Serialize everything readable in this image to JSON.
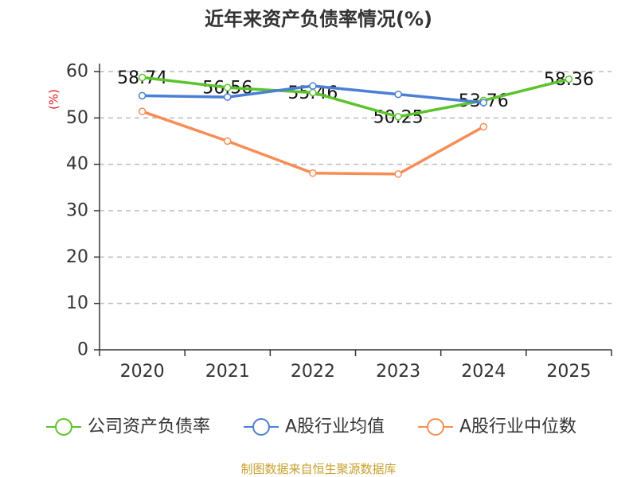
{
  "chart_data": {
    "type": "line",
    "title": "近年来资产负债率情况(%)",
    "ylabel": "(%)",
    "xlabel": "",
    "categories": [
      "2020",
      "2021",
      "2022",
      "2023",
      "2024",
      "2025"
    ],
    "ylim": [
      0,
      60
    ],
    "yticks": [
      0,
      10,
      20,
      30,
      40,
      50,
      60
    ],
    "grid": true,
    "legend_position": "bottom",
    "series": [
      {
        "name": "公司资产负债率",
        "color": "#5ac42a",
        "values": [
          58.74,
          56.56,
          55.46,
          50.25,
          53.76,
          58.36
        ],
        "show_labels": true
      },
      {
        "name": "A股行业均值",
        "color": "#4a7fd6",
        "values": [
          54.8,
          54.5,
          56.9,
          55.1,
          53.3,
          null
        ],
        "show_labels": false
      },
      {
        "name": "A股行业中位数",
        "color": "#f78d56",
        "values": [
          51.4,
          45.0,
          38.1,
          37.9,
          48.1,
          null
        ],
        "show_labels": false
      }
    ]
  },
  "source_note": "制图数据来自恒生聚源数据库",
  "colors": {
    "ylabel": "#e02020",
    "source_note": "#c8a02c",
    "axis": "#333333",
    "grid": "#bbbbbb"
  }
}
